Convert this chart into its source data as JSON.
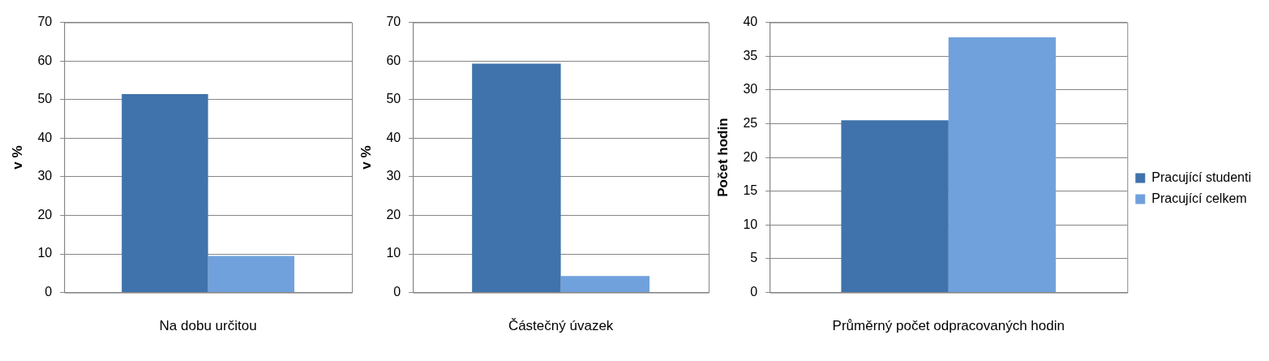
{
  "chart_data": [
    {
      "type": "bar",
      "categories": [
        "Na dobu určitou"
      ],
      "ylabel": "v %",
      "ylim": [
        0,
        70
      ],
      "yticks": [
        0,
        10,
        20,
        30,
        40,
        50,
        60,
        70
      ],
      "grid": "y",
      "legend": false,
      "series": [
        {
          "color": "#4073ab",
          "values": [
            51.4
          ]
        },
        {
          "color": "#70a1dc",
          "values": [
            9.5
          ]
        }
      ]
    },
    {
      "type": "bar",
      "categories": [
        "Částečný úvazek"
      ],
      "ylabel": "v %",
      "ylim": [
        0,
        70
      ],
      "yticks": [
        0,
        10,
        20,
        30,
        40,
        50,
        60,
        70
      ],
      "grid": "y",
      "legend": false,
      "series": [
        {
          "color": "#4073ab",
          "values": [
            59.3
          ]
        },
        {
          "color": "#70a1dc",
          "values": [
            4.3
          ]
        }
      ]
    },
    {
      "type": "bar",
      "categories": [
        "Průměrný počet odpracovaných hodin"
      ],
      "ylabel": "Počet hodin",
      "ylim": [
        0,
        40
      ],
      "yticks": [
        0,
        5,
        10,
        15,
        20,
        25,
        30,
        35,
        40
      ],
      "grid": "y",
      "legend": "right",
      "series": [
        {
          "name": "Pracující studenti",
          "color": "#4073ab",
          "values": [
            25.5
          ]
        },
        {
          "name": "Pracující celkem",
          "color": "#70a1dc",
          "values": [
            37.8
          ]
        }
      ]
    }
  ]
}
